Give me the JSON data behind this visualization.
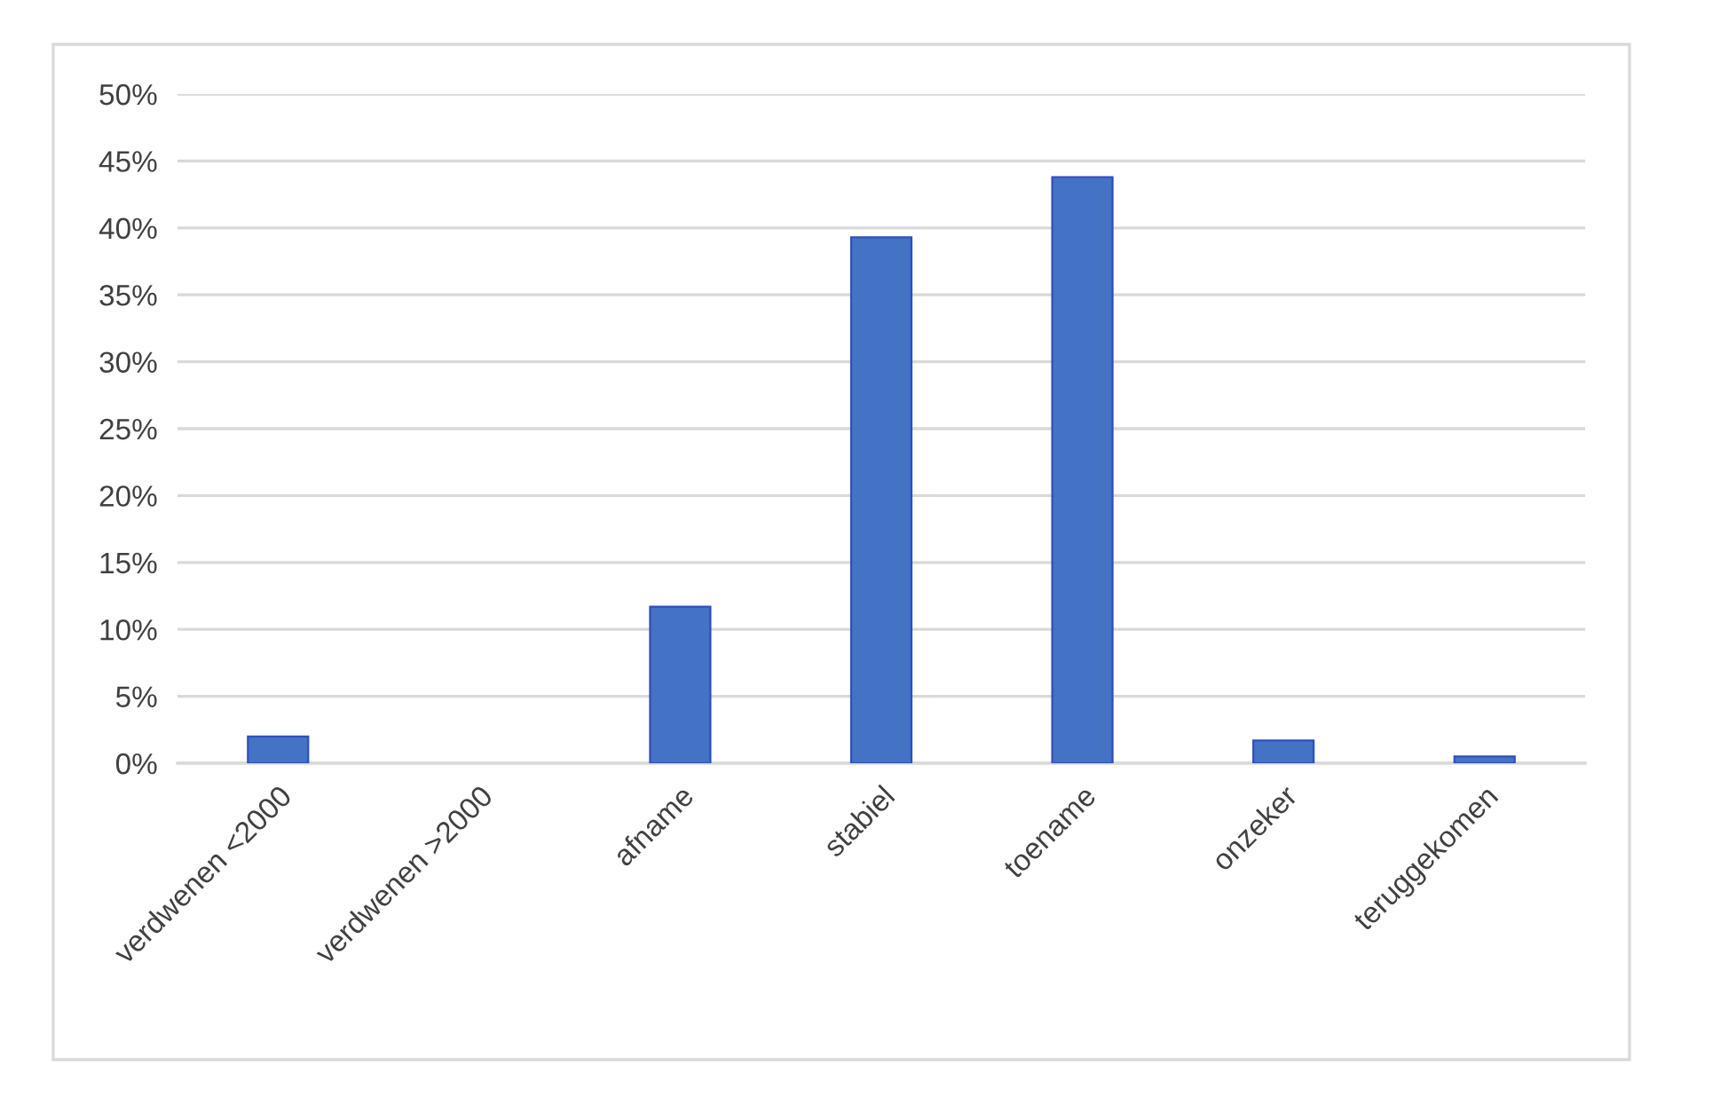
{
  "chart_data": {
    "type": "bar",
    "categories": [
      "verdwenen <2000",
      "verdwenen >2000",
      "afname",
      "stabiel",
      "toename",
      "onzeker",
      "teruggekomen"
    ],
    "values": [
      2.0,
      0,
      11.7,
      39.3,
      43.8,
      1.7,
      0.5
    ],
    "color": "#4472c4",
    "ylim": [
      0,
      50
    ],
    "yticks": [
      {
        "value": 0,
        "label": "0%"
      },
      {
        "value": 5,
        "label": "5%"
      },
      {
        "value": 10,
        "label": "10%"
      },
      {
        "value": 15,
        "label": "15%"
      },
      {
        "value": 20,
        "label": "20%"
      },
      {
        "value": 25,
        "label": "25%"
      },
      {
        "value": 30,
        "label": "30%"
      },
      {
        "value": 35,
        "label": "35%"
      },
      {
        "value": 40,
        "label": "40%"
      },
      {
        "value": 45,
        "label": "45%"
      },
      {
        "value": 50,
        "label": "50%"
      }
    ],
    "grid": "y"
  }
}
